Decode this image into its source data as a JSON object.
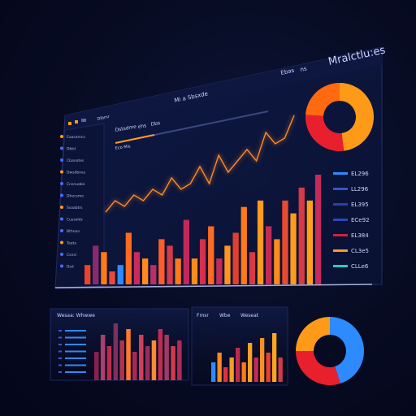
{
  "header": {
    "brand": "Mralctlu:es",
    "nav_left": "Ebas",
    "nav_right": "ns",
    "center_title": "Mi a Sbsxde"
  },
  "toolbar": {
    "tab_1": "Dstsdme",
    "tab_2": "ehs",
    "tab_3": "Dbs",
    "side_title": "Dlbmr",
    "sub": "Eco Mis"
  },
  "sidebar": {
    "items": [
      {
        "label": "Eaasamcs",
        "icon": "dot-icon"
      },
      {
        "label": "Dbtd",
        "icon": "chart-icon"
      },
      {
        "label": "Cbanotes",
        "icon": "circle-icon"
      },
      {
        "label": "Dwsdbnes",
        "icon": "grid-icon"
      },
      {
        "label": "Cnsnuabe",
        "icon": "square-icon"
      },
      {
        "label": "Dhecsme",
        "icon": "tag-icon"
      },
      {
        "label": "Ssaabtrs",
        "icon": "star-icon"
      },
      {
        "label": "Cussolds",
        "icon": "circle-icon"
      },
      {
        "label": "Bthnan",
        "icon": "bar-icon"
      },
      {
        "label": "Taeta",
        "icon": "user-icon"
      },
      {
        "label": "Csnsl",
        "icon": "gear-icon"
      },
      {
        "label": "Dsd",
        "icon": "info-icon"
      }
    ]
  },
  "legend": {
    "items": [
      {
        "label": "EL296",
        "color": "#2e8bff"
      },
      {
        "label": "LL296",
        "color": "#3355cc"
      },
      {
        "label": "EL395",
        "color": "#2b3fa8"
      },
      {
        "label": "ECe92",
        "color": "#2a45c0"
      },
      {
        "label": "EL384",
        "color": "#cc2244"
      },
      {
        "label": "CL3e5",
        "color": "#ff9922"
      },
      {
        "label": "CLLe6",
        "color": "#22d0c0"
      }
    ]
  },
  "panels": {
    "left_title": "Wesaa: Whwwe",
    "mid_tab_1": "Fmsr",
    "mid_tab_2": "Wbe",
    "mid_tab_3": "Weseat"
  },
  "chart_data": [
    {
      "type": "bar",
      "name": "main-bars",
      "values": [
        3,
        6,
        5,
        2,
        3,
        8,
        5,
        4,
        3,
        7,
        6,
        4,
        10,
        4,
        7,
        9,
        4,
        6,
        8,
        12,
        5,
        13,
        9,
        7,
        13,
        11,
        15,
        13,
        17
      ],
      "colors": [
        "#e8452e",
        "#8a2a6e",
        "#ff7a18",
        "#e84a3a",
        "#2e8bff",
        "#ff6a20",
        "#cc2a5a",
        "#ff8a20",
        "#b8306a",
        "#ff5e2a",
        "#d53a4a",
        "#ff7a1a",
        "#c2285a",
        "#ff8c1a",
        "#d4304e",
        "#ff6a22",
        "#c42a58",
        "#ff9622",
        "#e2402e",
        "#ff7a18",
        "#d83a44",
        "#ff9a20",
        "#c22a52",
        "#ff8a1e",
        "#e84a30",
        "#ff9c1e",
        "#d63a46",
        "#ffa018",
        "#c42a5a"
      ]
    },
    {
      "type": "line",
      "name": "main-line",
      "values": [
        3,
        5,
        4,
        6,
        5,
        7,
        6,
        9,
        7,
        8,
        11,
        8,
        13,
        10,
        12,
        14,
        12,
        17,
        15,
        16,
        20
      ]
    },
    {
      "type": "pie",
      "name": "top-donut",
      "values": [
        48,
        28,
        24
      ],
      "colors": [
        "#ff9a18",
        "#e8202e",
        "#ff6a10"
      ]
    },
    {
      "type": "bar",
      "name": "lower-left-bars",
      "values": [
        5,
        8,
        6,
        10,
        7,
        9,
        5,
        8,
        6,
        7,
        9,
        8,
        6,
        7
      ],
      "colors": [
        "#8a2050",
        "#a84070",
        "#c02a4a",
        "#7a3060",
        "#b23050",
        "#ff7a2a",
        "#a82858",
        "#d0405a",
        "#9a2a5a",
        "#ff8a30",
        "#c22a52",
        "#a03a66",
        "#d23a4a",
        "#b02a58"
      ]
    },
    {
      "type": "bar",
      "name": "lower-mid-bars",
      "values": [
        4,
        6,
        3,
        5,
        7,
        4,
        8,
        5,
        9,
        6,
        10,
        5
      ],
      "colors": [
        "#2e8bff",
        "#ff8a20",
        "#e23040",
        "#ff9a22",
        "#c02a4a",
        "#ff7a18",
        "#ffa020",
        "#c42a58",
        "#ff9020",
        "#e8402e",
        "#ffa420",
        "#d23a4a"
      ]
    },
    {
      "type": "pie",
      "name": "lower-donut",
      "values": [
        45,
        30,
        25
      ],
      "colors": [
        "#2e8bff",
        "#e8202e",
        "#ff9a18"
      ]
    }
  ]
}
